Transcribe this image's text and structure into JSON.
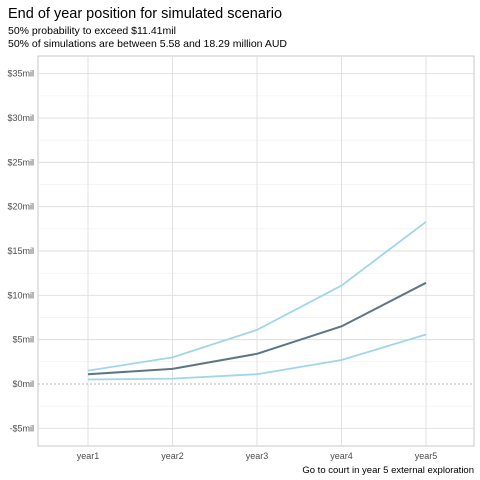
{
  "chart_data": {
    "type": "line",
    "title": "End of year position for simulated scenario",
    "subtitle_lines": [
      "50% probability to exceed $11.41mil",
      "50% of simulations are between 5.58 and 18.29 million AUD"
    ],
    "caption": "Go to court in year 5 external exploration",
    "xlabel": "",
    "ylabel": "",
    "categories": [
      "year1",
      "year2",
      "year3",
      "year4",
      "year5"
    ],
    "y_ticks": [
      -5,
      0,
      5,
      10,
      15,
      20,
      25,
      30,
      35
    ],
    "y_tick_labels": [
      "-$5mil",
      "$0mil",
      "$5mil",
      "$10mil",
      "$15mil",
      "$20mil",
      "$25mil",
      "$30mil",
      "$35mil"
    ],
    "ylim": [
      -7,
      37
    ],
    "grid": true,
    "zero_line": "dotted",
    "series": [
      {
        "values": [
          0.5,
          0.6,
          1.1,
          2.7,
          5.58
        ],
        "color": "#9fd6e8",
        "role": "lower-band"
      },
      {
        "values": [
          1.5,
          3.0,
          6.1,
          11.1,
          18.29
        ],
        "color": "#9fd6e8",
        "role": "upper-band"
      },
      {
        "values": [
          1.1,
          1.7,
          3.4,
          6.5,
          11.41
        ],
        "color": "#5e7583",
        "role": "median"
      }
    ]
  }
}
